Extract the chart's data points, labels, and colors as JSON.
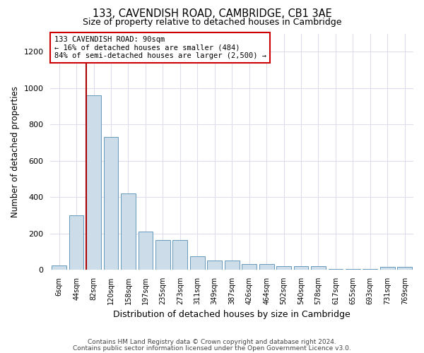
{
  "title": "133, CAVENDISH ROAD, CAMBRIDGE, CB1 3AE",
  "subtitle": "Size of property relative to detached houses in Cambridge",
  "xlabel": "Distribution of detached houses by size in Cambridge",
  "ylabel": "Number of detached properties",
  "annotation_title": "133 CAVENDISH ROAD: 90sqm",
  "annotation_line1": "← 16% of detached houses are smaller (484)",
  "annotation_line2": "84% of semi-detached houses are larger (2,500) →",
  "footer1": "Contains HM Land Registry data © Crown copyright and database right 2024.",
  "footer2": "Contains public sector information licensed under the Open Government Licence v3.0.",
  "bar_color": "#ccdce8",
  "bar_edge_color": "#6699bb",
  "vline_color": "#aa0000",
  "categories": [
    "6sqm",
    "44sqm",
    "82sqm",
    "120sqm",
    "158sqm",
    "197sqm",
    "235sqm",
    "273sqm",
    "311sqm",
    "349sqm",
    "387sqm",
    "426sqm",
    "464sqm",
    "502sqm",
    "540sqm",
    "578sqm",
    "617sqm",
    "655sqm",
    "693sqm",
    "731sqm",
    "769sqm"
  ],
  "values": [
    25,
    300,
    960,
    730,
    420,
    210,
    165,
    165,
    75,
    50,
    50,
    30,
    30,
    18,
    18,
    18,
    3,
    3,
    3,
    15,
    15
  ],
  "vline_index": 2,
  "ylim": [
    0,
    1300
  ],
  "yticks": [
    0,
    200,
    400,
    600,
    800,
    1000,
    1200
  ],
  "background_color": "#ffffff",
  "grid_color": "#ddddee"
}
